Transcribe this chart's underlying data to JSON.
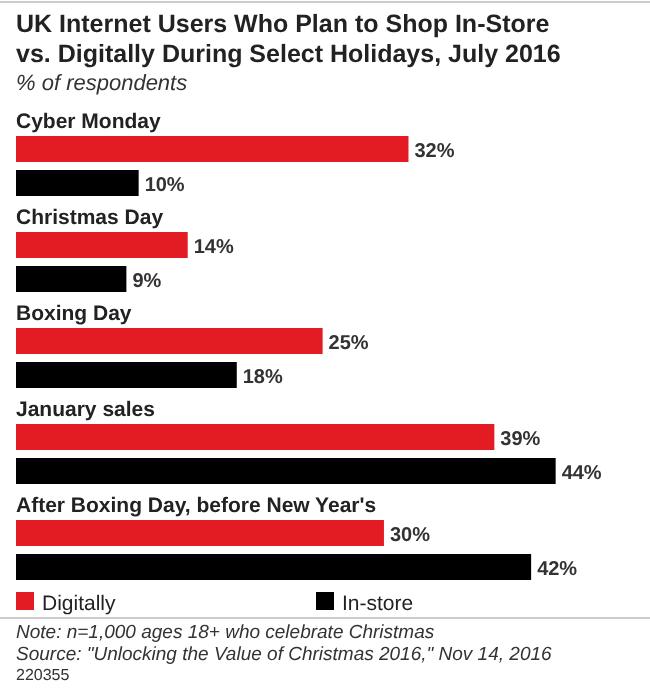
{
  "chart_data": {
    "type": "bar",
    "orientation": "horizontal",
    "title": "UK Internet Users Who Plan to Shop In-Store vs. Digitally During Select Holidays, July 2016",
    "subtitle": "% of respondents",
    "categories": [
      "Cyber Monday",
      "Christmas Day",
      "Boxing Day",
      "January sales",
      "After Boxing Day, before New Year's"
    ],
    "series": [
      {
        "name": "Digitally",
        "color": "#e31b23",
        "values": [
          32,
          14,
          25,
          39,
          30
        ],
        "value_labels": [
          "32%",
          "14%",
          "25%",
          "39%",
          "30%"
        ]
      },
      {
        "name": "In-store",
        "color": "#000000",
        "values": [
          10,
          9,
          18,
          44,
          42
        ],
        "value_labels": [
          "10%",
          "9%",
          "18%",
          "44%",
          "42%"
        ]
      }
    ],
    "legend": "bottom",
    "annotations": [
      "Note: n=1,000 ages 18+ who celebrate Christmas",
      "Source: \"Unlocking the Value of Christmas 2016,\" Nov 14, 2016",
      "220355"
    ]
  }
}
